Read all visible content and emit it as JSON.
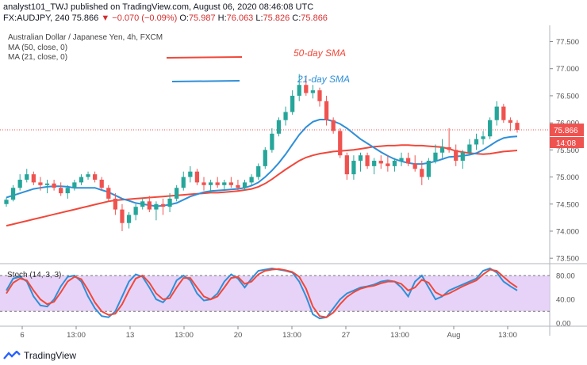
{
  "header": {
    "line1_pre": "analyst101_TWJ published on TradingView.com, August 06, 2020 08:46:08 UTC",
    "symbol": "FX:AUDJPY, 240",
    "last": "75.866",
    "arrow": "▼",
    "change": "−0.070 (−0.09%)",
    "o_label": "O:",
    "o": "75.987",
    "h_label": "H:",
    "h": "76.063",
    "l_label": "L:",
    "l": "75.826",
    "c_label": "C:",
    "c": "75.866"
  },
  "legend": {
    "title": "Australian Dollar / Japanese Yen, 4h, FXCM",
    "ma1": "MA (50, close, 0)",
    "ma2": "MA (21, close, 0)"
  },
  "annotations": {
    "sma50": "50-day SMA",
    "sma21": "21-day SMA"
  },
  "price_box": {
    "value": "75.866",
    "time": "14:08"
  },
  "stoch_label": "Stoch (14, 3, 3)",
  "footer": {
    "brand": "TradingView"
  },
  "colors": {
    "up": "#26a69a",
    "down": "#ef5350",
    "sma50": "#f0483a",
    "sma21": "#2f8fd8",
    "stoch_k": "#2f8fd8",
    "stoch_d": "#f0483a",
    "stoch_band": "#e1c8f5"
  },
  "chart_data": {
    "type": "candlestick",
    "y_ticks": [
      "77.500",
      "77.000",
      "76.500",
      "76.000",
      "75.500",
      "75.000",
      "74.500",
      "74.000",
      "73.500"
    ],
    "ylim": [
      73.4,
      77.8
    ],
    "x_ticks": [
      "6",
      "13:00",
      "13",
      "13:00",
      "20",
      "13:00",
      "27",
      "13:00",
      "Aug",
      "13:00"
    ],
    "candles": [
      [
        74.5,
        74.62,
        74.45,
        74.58
      ],
      [
        74.58,
        74.85,
        74.55,
        74.8
      ],
      [
        74.8,
        75.05,
        74.75,
        74.95
      ],
      [
        74.95,
        75.15,
        74.9,
        75.05
      ],
      [
        75.05,
        75.1,
        74.85,
        74.9
      ],
      [
        74.9,
        75.0,
        74.75,
        74.85
      ],
      [
        74.85,
        74.95,
        74.7,
        74.88
      ],
      [
        74.88,
        74.95,
        74.75,
        74.8
      ],
      [
        74.8,
        74.9,
        74.65,
        74.7
      ],
      [
        74.7,
        74.85,
        74.6,
        74.8
      ],
      [
        74.8,
        74.95,
        74.75,
        74.9
      ],
      [
        74.9,
        75.05,
        74.85,
        75.0
      ],
      [
        75.0,
        75.1,
        74.95,
        75.05
      ],
      [
        75.05,
        75.1,
        74.9,
        74.95
      ],
      [
        74.95,
        75.0,
        74.75,
        74.8
      ],
      [
        74.8,
        74.85,
        74.55,
        74.6
      ],
      [
        74.6,
        74.7,
        74.3,
        74.4
      ],
      [
        74.4,
        74.5,
        74.0,
        74.15
      ],
      [
        74.15,
        74.35,
        74.05,
        74.3
      ],
      [
        74.3,
        74.5,
        74.2,
        74.45
      ],
      [
        74.45,
        74.6,
        74.4,
        74.55
      ],
      [
        74.55,
        74.65,
        74.35,
        74.4
      ],
      [
        74.4,
        74.55,
        74.2,
        74.5
      ],
      [
        74.5,
        74.6,
        74.3,
        74.45
      ],
      [
        74.45,
        74.7,
        74.35,
        74.6
      ],
      [
        74.6,
        74.85,
        74.55,
        74.8
      ],
      [
        74.8,
        75.1,
        74.75,
        75.0
      ],
      [
        75.0,
        75.2,
        74.9,
        75.1
      ],
      [
        75.1,
        75.15,
        74.85,
        74.9
      ],
      [
        74.9,
        75.0,
        74.75,
        74.85
      ],
      [
        74.85,
        74.95,
        74.7,
        74.9
      ],
      [
        74.9,
        75.0,
        74.8,
        74.85
      ],
      [
        74.85,
        74.95,
        74.75,
        74.9
      ],
      [
        74.9,
        75.0,
        74.8,
        74.85
      ],
      [
        74.85,
        74.95,
        74.75,
        74.8
      ],
      [
        74.8,
        74.95,
        74.75,
        74.9
      ],
      [
        74.9,
        75.05,
        74.85,
        75.0
      ],
      [
        75.0,
        75.25,
        74.95,
        75.2
      ],
      [
        75.2,
        75.55,
        75.15,
        75.5
      ],
      [
        75.5,
        75.9,
        75.45,
        75.8
      ],
      [
        75.8,
        76.1,
        75.75,
        76.05
      ],
      [
        76.05,
        76.3,
        75.95,
        76.2
      ],
      [
        76.2,
        76.6,
        76.15,
        76.5
      ],
      [
        76.5,
        76.9,
        76.4,
        76.7
      ],
      [
        76.7,
        76.85,
        76.5,
        76.55
      ],
      [
        76.55,
        76.7,
        76.45,
        76.6
      ],
      [
        76.6,
        76.65,
        76.3,
        76.4
      ],
      [
        76.4,
        76.5,
        75.95,
        76.05
      ],
      [
        76.05,
        76.1,
        75.8,
        75.85
      ],
      [
        75.85,
        75.9,
        75.35,
        75.4
      ],
      [
        75.4,
        75.45,
        74.95,
        75.05
      ],
      [
        75.05,
        75.4,
        74.95,
        75.3
      ],
      [
        75.3,
        75.45,
        75.1,
        75.4
      ],
      [
        75.4,
        75.45,
        75.15,
        75.2
      ],
      [
        75.2,
        75.35,
        75.05,
        75.3
      ],
      [
        75.3,
        75.4,
        75.15,
        75.25
      ],
      [
        75.25,
        75.4,
        75.1,
        75.2
      ],
      [
        75.2,
        75.35,
        75.1,
        75.3
      ],
      [
        75.3,
        75.45,
        75.2,
        75.35
      ],
      [
        75.35,
        75.45,
        75.2,
        75.25
      ],
      [
        75.25,
        75.4,
        75.1,
        75.15
      ],
      [
        75.15,
        75.3,
        74.85,
        75.0
      ],
      [
        75.0,
        75.35,
        74.95,
        75.3
      ],
      [
        75.3,
        75.6,
        75.25,
        75.45
      ],
      [
        75.45,
        75.7,
        75.35,
        75.55
      ],
      [
        75.55,
        75.9,
        75.45,
        75.5
      ],
      [
        75.5,
        75.6,
        75.2,
        75.3
      ],
      [
        75.3,
        75.5,
        75.15,
        75.45
      ],
      [
        75.45,
        75.7,
        75.4,
        75.6
      ],
      [
        75.6,
        75.8,
        75.5,
        75.7
      ],
      [
        75.7,
        75.85,
        75.6,
        75.75
      ],
      [
        75.75,
        76.1,
        75.7,
        76.05
      ],
      [
        76.05,
        76.4,
        75.95,
        76.3
      ],
      [
        76.3,
        76.35,
        76.0,
        76.05
      ],
      [
        76.05,
        76.1,
        75.85,
        76.0
      ],
      [
        76.0,
        76.05,
        75.82,
        75.87
      ]
    ],
    "sma21": [
      74.62,
      74.66,
      74.7,
      74.74,
      74.78,
      74.8,
      74.82,
      74.83,
      74.83,
      74.82,
      74.8,
      74.8,
      74.8,
      74.8,
      74.76,
      74.72,
      74.66,
      74.6,
      74.56,
      74.52,
      74.5,
      74.48,
      74.46,
      74.47,
      74.49,
      74.52,
      74.58,
      74.64,
      74.68,
      74.72,
      74.74,
      74.75,
      74.76,
      74.77,
      74.78,
      74.8,
      74.84,
      74.9,
      75.0,
      75.12,
      75.26,
      75.42,
      75.6,
      75.78,
      75.92,
      76.02,
      76.06,
      76.06,
      76.03,
      75.98,
      75.9,
      75.8,
      75.7,
      75.62,
      75.54,
      75.46,
      75.39,
      75.33,
      75.29,
      75.26,
      75.24,
      75.24,
      75.26,
      75.29,
      75.33,
      75.37,
      75.38,
      75.39,
      75.41,
      75.44,
      75.5,
      75.58,
      75.66,
      75.72,
      75.74,
      75.75
    ],
    "sma50": [
      74.1,
      74.13,
      74.16,
      74.19,
      74.22,
      74.25,
      74.28,
      74.31,
      74.34,
      74.37,
      74.4,
      74.43,
      74.46,
      74.49,
      74.52,
      74.55,
      74.57,
      74.58,
      74.59,
      74.6,
      74.61,
      74.62,
      74.63,
      74.64,
      74.65,
      74.66,
      74.67,
      74.68,
      74.69,
      74.7,
      74.71,
      74.71,
      74.72,
      74.73,
      74.74,
      74.76,
      74.78,
      74.82,
      74.88,
      74.96,
      75.05,
      75.14,
      75.22,
      75.3,
      75.36,
      75.4,
      75.43,
      75.45,
      75.47,
      75.48,
      75.49,
      75.5,
      75.52,
      75.54,
      75.56,
      75.57,
      75.58,
      75.58,
      75.59,
      75.59,
      75.58,
      75.58,
      75.57,
      75.56,
      75.55,
      75.52,
      75.48,
      75.46,
      75.44,
      75.43,
      75.42,
      75.43,
      75.45,
      75.47,
      75.48,
      75.49
    ],
    "stoch_yticks": [
      "80.00",
      "40.00",
      "0.00"
    ],
    "stoch_ylim": [
      -5,
      100
    ],
    "stoch_k": [
      55,
      75,
      78,
      70,
      45,
      30,
      28,
      40,
      62,
      78,
      80,
      70,
      45,
      25,
      12,
      10,
      20,
      45,
      70,
      82,
      78,
      60,
      40,
      35,
      48,
      72,
      80,
      72,
      50,
      38,
      40,
      50,
      70,
      82,
      75,
      60,
      75,
      88,
      90,
      92,
      90,
      88,
      85,
      70,
      45,
      15,
      8,
      10,
      25,
      40,
      50,
      55,
      60,
      62,
      65,
      70,
      72,
      70,
      60,
      45,
      70,
      80,
      60,
      40,
      45,
      55,
      60,
      65,
      70,
      75,
      88,
      92,
      85,
      70,
      62,
      55
    ],
    "stoch_d": [
      50,
      68,
      75,
      72,
      55,
      40,
      32,
      36,
      52,
      70,
      78,
      74,
      56,
      35,
      20,
      14,
      16,
      32,
      55,
      75,
      80,
      68,
      50,
      40,
      42,
      60,
      76,
      76,
      60,
      45,
      40,
      45,
      60,
      76,
      78,
      66,
      70,
      82,
      88,
      90,
      91,
      89,
      86,
      78,
      58,
      28,
      12,
      10,
      18,
      32,
      44,
      52,
      58,
      61,
      63,
      67,
      70,
      70,
      66,
      55,
      60,
      73,
      68,
      52,
      46,
      50,
      56,
      62,
      67,
      72,
      82,
      90,
      88,
      78,
      68,
      60
    ]
  }
}
